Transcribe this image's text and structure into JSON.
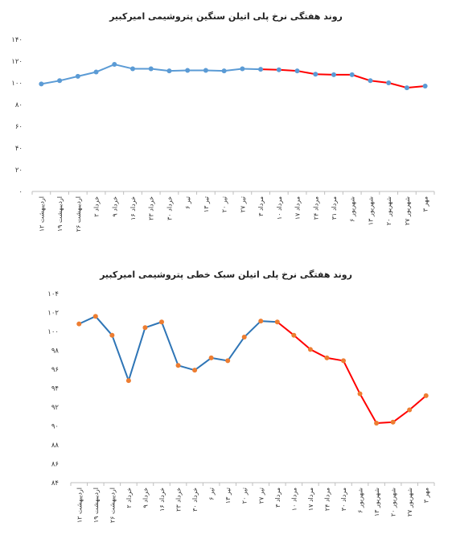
{
  "chart_data": [
    {
      "type": "line",
      "title": "روند هفتگی نرخ پلی اتیلن سنگین پتروشیمی امیرکبیر",
      "categories": [
        "۱۲ اردیبهشت",
        "۱۹ اردیبهشت",
        "۲۶ اردیبهشت",
        "۲ خرداد",
        "۹ خرداد",
        "۱۶ خرداد",
        "۲۳ خرداد",
        "۳۰ خرداد",
        "۶ تیر",
        "۱۳ تیر",
        "۲۰ تیر",
        "۲۷ تیر",
        "۳ مرداد",
        "۱۰ مرداد",
        "۱۷ مرداد",
        "۲۴ مرداد",
        "۳۱ مرداد",
        "۶ شهریور",
        "۱۳ شهریور",
        "۲۰ شهریور",
        "۲۷ شهریور",
        "۳ مهر"
      ],
      "values": [
        99,
        102,
        106,
        110,
        117,
        113,
        113,
        111,
        111.5,
        111.5,
        111,
        113,
        112.5,
        112,
        111,
        108,
        107.5,
        107.5,
        102,
        100,
        95.5,
        97
      ],
      "ylim": [
        0,
        140
      ],
      "yticks": [
        "۰",
        "۲۰",
        "۴۰",
        "۶۰",
        "۸۰",
        "۱۰۰",
        "۱۲۰",
        "۱۴۰"
      ],
      "yticks_values": [
        0,
        20,
        40,
        60,
        80,
        100,
        120,
        140
      ],
      "red_from_index": 12,
      "colors": {
        "line": "#5b9bd5",
        "marker": "#5b9bd5",
        "highlight": "#ff0000"
      }
    },
    {
      "type": "line",
      "title": "روند هفتگی نرخ پلی اتیلن سبک خطی پتروشیمی امیرکبیر",
      "categories": [
        "۱۲ اردیبهشت",
        "۱۹ اردیبهشت",
        "۲۶ اردیبهشت",
        "۲ خرداد",
        "۹ خرداد",
        "۱۶ خرداد",
        "۲۳ خرداد",
        "۳۰ خرداد",
        "۶ تیر",
        "۱۳ تیر",
        "۲۰ تیر",
        "۲۷ تیر",
        "۳ مرداد",
        "۱۰ مرداد",
        "۱۷ مرداد",
        "۲۴ مرداد",
        "۳۰ مرداد",
        "۶ شهریور",
        "۱۳ شهریور",
        "۲۰ شهریور",
        "۲۷ شهریور",
        "۳ مهر"
      ],
      "values": [
        100.8,
        101.6,
        99.6,
        94.8,
        100.4,
        101.0,
        96.4,
        95.9,
        97.2,
        96.9,
        99.4,
        101.1,
        101.0,
        99.6,
        98.1,
        97.2,
        96.9,
        93.4,
        90.3,
        90.4,
        91.7,
        93.2
      ],
      "ylim": [
        84,
        104
      ],
      "yticks": [
        "۸۴",
        "۸۶",
        "۸۸",
        "۹۰",
        "۹۲",
        "۹۴",
        "۹۶",
        "۹۸",
        "۱۰۰",
        "۱۰۲",
        "۱۰۴"
      ],
      "yticks_values": [
        84,
        86,
        88,
        90,
        92,
        94,
        96,
        98,
        100,
        102,
        104
      ],
      "red_from_index": 12,
      "colors": {
        "line": "#2e75b6",
        "marker": "#ed7d31",
        "highlight": "#ff0000"
      }
    }
  ]
}
